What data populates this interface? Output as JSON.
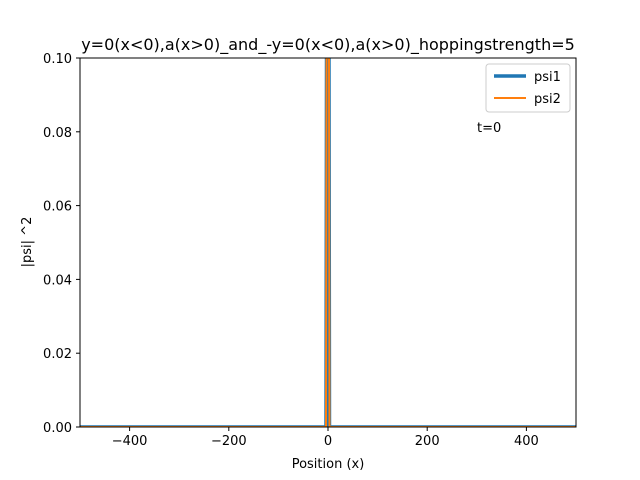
{
  "chart_data": {
    "type": "line",
    "title": "y=0(x<0),a(x>0)_and_-y=0(x<0),a(x>0)_hoppingstrength=5",
    "xlabel": "Position (x)",
    "ylabel": "|psi| ^2",
    "xlim": [
      -500,
      500
    ],
    "ylim": [
      0,
      0.1
    ],
    "xticks": [
      -400,
      -200,
      0,
      200,
      400
    ],
    "xtick_labels": [
      "−400",
      "−200",
      "0",
      "200",
      "400"
    ],
    "yticks": [
      0,
      0.02,
      0.04,
      0.06,
      0.08,
      0.1
    ],
    "ytick_labels": [
      "0.00",
      "0.02",
      "0.04",
      "0.06",
      "0.08",
      "0.10"
    ],
    "grid": false,
    "legend_position": "top-right",
    "annotation": {
      "text": "t=0",
      "x": 300,
      "y": 0.08
    },
    "series": [
      {
        "name": "psi1",
        "color": "#1f77b4",
        "x": [
          -500,
          -4,
          -3,
          -2,
          -1,
          0,
          1,
          2,
          3,
          500
        ],
        "y": [
          0,
          0,
          0.1,
          0.1,
          0.1,
          0.1,
          0.1,
          0.1,
          0,
          0
        ]
      },
      {
        "name": "psi2",
        "color": "#ff7f0e",
        "x": [
          -500,
          -4,
          -3,
          -2,
          -1,
          0,
          1,
          2,
          3,
          500
        ],
        "y": [
          0,
          0,
          0.1,
          0.1,
          0.1,
          0.1,
          0.1,
          0.1,
          0,
          0
        ]
      }
    ]
  }
}
